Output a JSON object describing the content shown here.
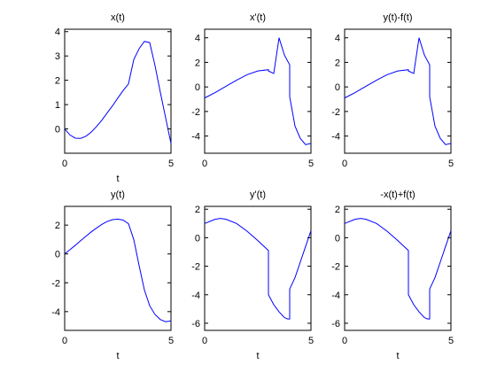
{
  "figure": {
    "background": "#ffffff",
    "line_color": "#0000ff"
  },
  "chart_data": [
    {
      "type": "line",
      "title": "x(t)",
      "xlabel": "t",
      "ylabel": "",
      "xlim": [
        0,
        5
      ],
      "ylim": [
        -1,
        4.1
      ],
      "xticks": [
        0,
        5
      ],
      "yticks": [
        0,
        1,
        2,
        3,
        4
      ],
      "grid": false,
      "series": [
        {
          "x": [
            0,
            0.25,
            0.5,
            0.75,
            1.0,
            1.25,
            1.5,
            1.75,
            2.0,
            2.25,
            2.5,
            2.75,
            3.0,
            3.25,
            3.5,
            3.75,
            4.0,
            4.25,
            4.5,
            4.75,
            5.0
          ],
          "y": [
            0,
            -0.25,
            -0.38,
            -0.39,
            -0.3,
            -0.13,
            0.1,
            0.36,
            0.66,
            0.95,
            1.27,
            1.58,
            1.85,
            2.85,
            3.3,
            3.6,
            3.55,
            2.6,
            1.5,
            0.45,
            -0.6
          ]
        }
      ]
    },
    {
      "type": "line",
      "title": "x'(t)",
      "xlabel": "",
      "ylabel": "",
      "xlim": [
        0,
        5
      ],
      "ylim": [
        -5.4,
        4.7
      ],
      "xticks": [
        0,
        5
      ],
      "yticks": [
        -4,
        -2,
        0,
        2,
        4
      ],
      "grid": false,
      "series": [
        {
          "x": [
            0,
            0.5,
            1.0,
            1.5,
            2.0,
            2.5,
            3.0,
            3.0,
            3.25,
            3.5,
            3.75,
            4.0,
            4.0,
            4.25,
            4.5,
            4.75,
            5.0
          ],
          "y": [
            -0.9,
            -0.45,
            0.05,
            0.55,
            1.0,
            1.3,
            1.4,
            1.3,
            1.1,
            4.0,
            2.6,
            1.8,
            -0.8,
            -3.2,
            -4.2,
            -4.7,
            -4.6
          ]
        }
      ]
    },
    {
      "type": "line",
      "title": "y(t)-f(t)",
      "xlabel": "",
      "ylabel": "",
      "xlim": [
        0,
        5
      ],
      "ylim": [
        -5.4,
        4.7
      ],
      "xticks": [
        0,
        5
      ],
      "yticks": [
        -4,
        -2,
        0,
        2,
        4
      ],
      "grid": false,
      "series": [
        {
          "x": [
            0,
            0.5,
            1.0,
            1.5,
            2.0,
            2.5,
            3.0,
            3.0,
            3.25,
            3.5,
            3.75,
            4.0,
            4.0,
            4.25,
            4.5,
            4.75,
            5.0
          ],
          "y": [
            -0.9,
            -0.45,
            0.05,
            0.55,
            1.0,
            1.3,
            1.4,
            1.3,
            1.1,
            4.0,
            2.6,
            1.8,
            -0.8,
            -3.2,
            -4.2,
            -4.7,
            -4.6
          ]
        }
      ]
    },
    {
      "type": "line",
      "title": "y(t)",
      "xlabel": "t",
      "ylabel": "",
      "xlim": [
        0,
        5
      ],
      "ylim": [
        -5.3,
        3.3
      ],
      "xticks": [
        0,
        5
      ],
      "yticks": [
        -4,
        -2,
        0,
        2
      ],
      "grid": false,
      "series": [
        {
          "x": [
            0,
            0.25,
            0.5,
            0.75,
            1.0,
            1.25,
            1.5,
            1.75,
            2.0,
            2.25,
            2.5,
            2.75,
            3.0,
            3.25,
            3.5,
            3.75,
            4.0,
            4.25,
            4.5,
            4.75,
            5.0
          ],
          "y": [
            0,
            0.3,
            0.6,
            0.92,
            1.23,
            1.53,
            1.8,
            2.05,
            2.25,
            2.38,
            2.42,
            2.35,
            2.1,
            1.0,
            -0.8,
            -2.5,
            -3.6,
            -4.2,
            -4.55,
            -4.7,
            -4.65
          ]
        }
      ]
    },
    {
      "type": "line",
      "title": "y'(t)",
      "xlabel": "t",
      "ylabel": "",
      "xlim": [
        0,
        5
      ],
      "ylim": [
        -6.5,
        2.2
      ],
      "xticks": [
        0,
        5
      ],
      "yticks": [
        -6,
        -4,
        -2,
        0,
        2
      ],
      "grid": false,
      "series": [
        {
          "x": [
            0,
            0.5,
            0.75,
            1.0,
            1.5,
            2.0,
            2.5,
            3.0,
            3.0,
            3.25,
            3.5,
            3.75,
            3.9,
            4.0,
            4.0,
            4.25,
            4.5,
            4.75,
            5.0
          ],
          "y": [
            1.0,
            1.3,
            1.35,
            1.3,
            1.0,
            0.45,
            -0.2,
            -0.9,
            -4.0,
            -4.7,
            -5.2,
            -5.6,
            -5.7,
            -5.7,
            -3.6,
            -2.8,
            -1.7,
            -0.6,
            0.5
          ]
        }
      ]
    },
    {
      "type": "line",
      "title": "-x(t)+f(t)",
      "xlabel": "t",
      "ylabel": "",
      "xlim": [
        0,
        5
      ],
      "ylim": [
        -6.5,
        2.2
      ],
      "xticks": [
        0,
        5
      ],
      "yticks": [
        -6,
        -4,
        -2,
        0,
        2
      ],
      "grid": false,
      "series": [
        {
          "x": [
            0,
            0.5,
            0.75,
            1.0,
            1.5,
            2.0,
            2.5,
            3.0,
            3.0,
            3.25,
            3.5,
            3.75,
            3.9,
            4.0,
            4.0,
            4.25,
            4.5,
            4.75,
            5.0
          ],
          "y": [
            1.0,
            1.3,
            1.35,
            1.3,
            1.0,
            0.45,
            -0.2,
            -0.9,
            -4.0,
            -4.7,
            -5.2,
            -5.6,
            -5.7,
            -5.7,
            -3.6,
            -2.8,
            -1.7,
            -0.6,
            0.5
          ]
        }
      ]
    }
  ]
}
